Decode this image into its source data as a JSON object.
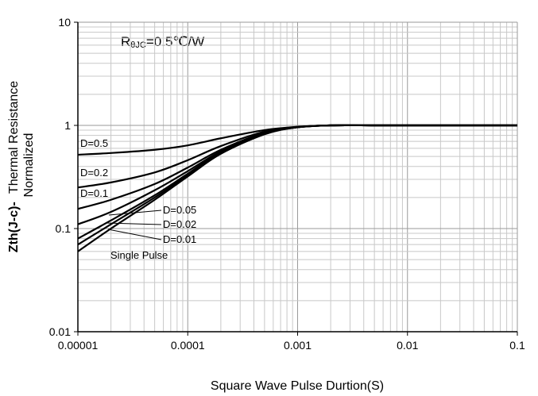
{
  "chart_data": {
    "type": "line",
    "xscale": "log",
    "yscale": "log",
    "xlim": [
      1e-05,
      0.1
    ],
    "ylim": [
      0.01,
      10
    ],
    "grid": true,
    "xlabel": "Square Wave Pulse Durtion(S)",
    "ylabel": {
      "bold_part": "Zth(J-c)-",
      "line1": "Thermal Resistance",
      "line2": "Normalized"
    },
    "annotation": {
      "prefix": "R",
      "subscript": "θJC",
      "suffix": "=0.5℃/W"
    },
    "x_ticks": [
      "0.00001",
      "0.0001",
      "0.001",
      "0.01",
      "0.1"
    ],
    "y_ticks": [
      "0.01",
      "0.1",
      "1",
      "10"
    ],
    "series": [
      {
        "name": "D=0.5",
        "x": [
          1e-05,
          2e-05,
          5e-05,
          0.0001,
          0.0002,
          0.0005,
          0.001,
          0.002,
          0.005,
          0.01,
          0.1
        ],
        "y": [
          0.52,
          0.54,
          0.58,
          0.64,
          0.75,
          0.9,
          0.97,
          1.0,
          1.0,
          1.0,
          1.0
        ]
      },
      {
        "name": "D=0.2",
        "x": [
          1e-05,
          2e-05,
          5e-05,
          0.0001,
          0.0002,
          0.0005,
          0.001,
          0.002,
          0.005,
          0.01,
          0.1
        ],
        "y": [
          0.25,
          0.28,
          0.35,
          0.46,
          0.63,
          0.87,
          0.96,
          1.0,
          1.0,
          1.0,
          1.0
        ]
      },
      {
        "name": "D=0.1",
        "x": [
          1e-05,
          2e-05,
          5e-05,
          0.0001,
          0.0002,
          0.0005,
          0.001,
          0.002,
          0.005,
          0.01,
          0.1
        ],
        "y": [
          0.155,
          0.19,
          0.27,
          0.39,
          0.58,
          0.85,
          0.96,
          1.0,
          1.0,
          1.0,
          1.0
        ]
      },
      {
        "name": "D=0.05",
        "x": [
          1e-05,
          2e-05,
          5e-05,
          0.0001,
          0.0002,
          0.0005,
          0.001,
          0.002,
          0.005,
          0.01,
          0.1
        ],
        "y": [
          0.11,
          0.145,
          0.235,
          0.36,
          0.56,
          0.84,
          0.96,
          1.0,
          1.0,
          1.0,
          1.0
        ]
      },
      {
        "name": "D=0.02",
        "x": [
          1e-05,
          2e-05,
          5e-05,
          0.0001,
          0.0002,
          0.0005,
          0.001,
          0.002,
          0.005,
          0.01,
          0.1
        ],
        "y": [
          0.08,
          0.12,
          0.21,
          0.34,
          0.55,
          0.83,
          0.96,
          1.0,
          1.0,
          1.0,
          1.0
        ]
      },
      {
        "name": "D=0.01",
        "x": [
          1e-05,
          2e-05,
          5e-05,
          0.0001,
          0.0002,
          0.0005,
          0.001,
          0.002,
          0.005,
          0.01,
          0.1
        ],
        "y": [
          0.07,
          0.11,
          0.2,
          0.33,
          0.54,
          0.83,
          0.96,
          1.0,
          1.0,
          1.0,
          1.0
        ]
      },
      {
        "name": "Single Pulse",
        "x": [
          1e-05,
          2e-05,
          5e-05,
          0.0001,
          0.0002,
          0.0005,
          0.001,
          0.002,
          0.005,
          0.01,
          0.1
        ],
        "y": [
          0.06,
          0.1,
          0.19,
          0.32,
          0.53,
          0.82,
          0.96,
          1.0,
          1.0,
          1.0,
          1.0
        ]
      }
    ]
  }
}
